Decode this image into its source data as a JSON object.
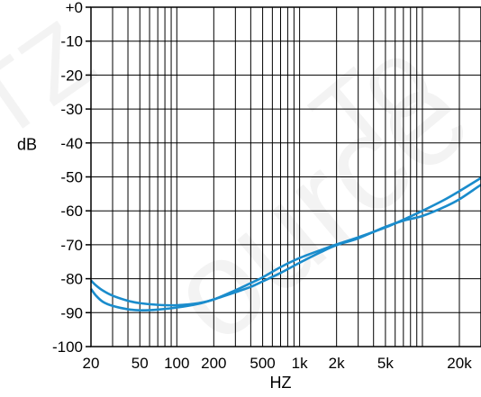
{
  "chart_data": {
    "type": "line",
    "title": "",
    "xlabel": "HZ",
    "ylabel": "dB",
    "x_scale": "log",
    "xlim": [
      20,
      30000
    ],
    "ylim": [
      -100,
      0
    ],
    "grid": true,
    "legend": "none",
    "x_ticks": [
      {
        "value": 20,
        "label": "20"
      },
      {
        "value": 50,
        "label": "50"
      },
      {
        "value": 100,
        "label": "100"
      },
      {
        "value": 200,
        "label": "200"
      },
      {
        "value": 500,
        "label": "500"
      },
      {
        "value": 1000,
        "label": "1k"
      },
      {
        "value": 2000,
        "label": "2k"
      },
      {
        "value": 5000,
        "label": "5k"
      },
      {
        "value": 20000,
        "label": "20k"
      }
    ],
    "y_ticks": [
      {
        "value": 0,
        "label": "+0"
      },
      {
        "value": -10,
        "label": "-10"
      },
      {
        "value": -20,
        "label": "-20"
      },
      {
        "value": -30,
        "label": "-30"
      },
      {
        "value": -40,
        "label": "-40"
      },
      {
        "value": -50,
        "label": "-50"
      },
      {
        "value": -60,
        "label": "-60"
      },
      {
        "value": -70,
        "label": "-70"
      },
      {
        "value": -80,
        "label": "-80"
      },
      {
        "value": -90,
        "label": "-90"
      },
      {
        "value": -100,
        "label": "-100"
      }
    ],
    "series": [
      {
        "color": "#1a8ccc",
        "x": [
          20,
          22,
          25,
          30,
          40,
          50,
          70,
          100,
          150,
          200,
          300,
          400,
          500,
          700,
          1000,
          1500,
          2000,
          3000,
          5000,
          7000,
          10000,
          15000,
          20000,
          30000
        ],
        "y": [
          -80.5,
          -82,
          -83.5,
          -85,
          -86.5,
          -87.2,
          -87.7,
          -87.8,
          -87.2,
          -86.1,
          -83.4,
          -81.3,
          -79.6,
          -76.6,
          -73.9,
          -71.5,
          -69.9,
          -67.8,
          -64.9,
          -62.6,
          -60,
          -56.8,
          -54.2,
          -50.3
        ]
      },
      {
        "color": "#1a8ccc",
        "x": [
          20,
          22,
          25,
          30,
          40,
          50,
          70,
          100,
          150,
          200,
          300,
          400,
          500,
          700,
          1000,
          1500,
          2000,
          3000,
          5000,
          7000,
          10000,
          15000,
          20000,
          30000
        ],
        "y": [
          -83,
          -85,
          -86.8,
          -88,
          -89,
          -89.3,
          -89.1,
          -88.5,
          -87.4,
          -86.1,
          -84,
          -82.4,
          -80.8,
          -78.3,
          -75.3,
          -72.1,
          -70.1,
          -68.1,
          -64.7,
          -62.9,
          -61.5,
          -58.9,
          -56.6,
          -52.3
        ]
      }
    ]
  }
}
